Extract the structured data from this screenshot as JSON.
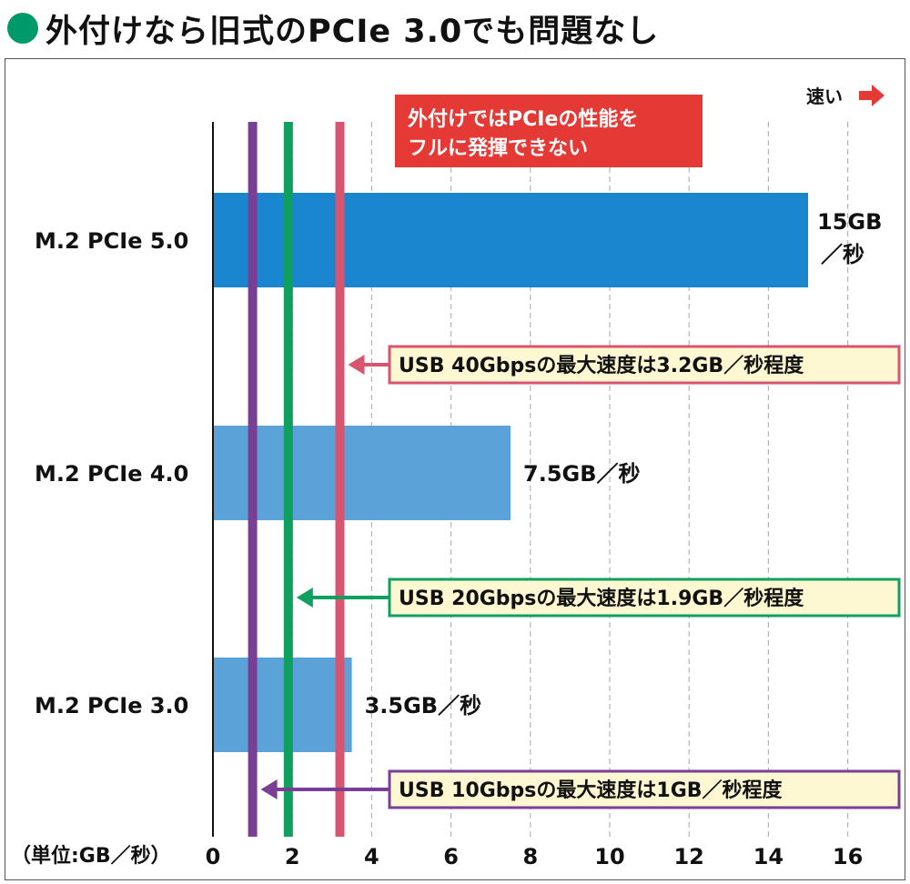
{
  "title": "外付けなら旧式のPCIe 3.0でも問題なし",
  "note": {
    "line1": "外付けではPCIeの性能を",
    "line2": "フルに発揮できない",
    "color": "#e53935"
  },
  "fast_label": "速い",
  "unit_label": "（単位:GB／秒）",
  "chart_data": {
    "type": "bar",
    "orientation": "horizontal",
    "categories": [
      "M.2 PCIe 5.0",
      "M.2 PCIe 4.0",
      "M.2 PCIe 3.0"
    ],
    "values": [
      15,
      7.5,
      3.5
    ],
    "value_labels": [
      "15GB／秒",
      "7.5GB／秒",
      "3.5GB／秒"
    ],
    "bar_colors": [
      "#1a86cf",
      "#5aa2d8",
      "#5aa2d8"
    ],
    "xlim": [
      0,
      16
    ],
    "xticks": [
      0,
      2,
      4,
      6,
      8,
      10,
      12,
      14,
      16
    ],
    "grid": true,
    "reference_lines": [
      {
        "value": 3.2,
        "label": "USB 40Gbpsの最大速度は3.2GB／秒程度",
        "color": "#d9546f"
      },
      {
        "value": 1.9,
        "label": "USB 20Gbpsの最大速度は1.9GB／秒程度",
        "color": "#0fa060"
      },
      {
        "value": 1.0,
        "label": "USB 10Gbpsの最大速度は1GB／秒程度",
        "color": "#7a3f95"
      }
    ]
  }
}
